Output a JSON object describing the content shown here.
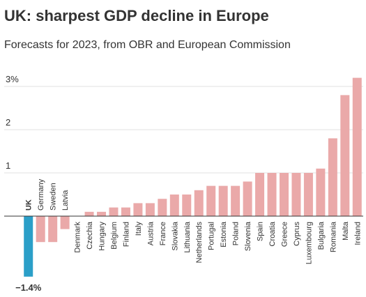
{
  "chart_data": {
    "type": "bar",
    "title": "UK: sharpest GDP decline in Europe",
    "subtitle": "Forecasts for 2023, from OBR and European Commission",
    "categories": [
      "UK",
      "Germany",
      "Sweden",
      "Latvia",
      "Denmark",
      "Czechia",
      "Hungary",
      "Belgium",
      "Finland",
      "Italy",
      "Austria",
      "France",
      "Slovakia",
      "Lithuania",
      "Netherlands",
      "Portugal",
      "Estonia",
      "Poland",
      "Slovenia",
      "Spain",
      "Croatia",
      "Greece",
      "Cyprus",
      "Luxembourg",
      "Bulgaria",
      "Romania",
      "Malta",
      "Ireland"
    ],
    "values": [
      -1.4,
      -0.6,
      -0.6,
      -0.3,
      0,
      0.1,
      0.1,
      0.2,
      0.2,
      0.3,
      0.3,
      0.4,
      0.5,
      0.5,
      0.6,
      0.7,
      0.7,
      0.7,
      0.8,
      1.0,
      1.0,
      1.0,
      1.0,
      1.0,
      1.1,
      1.8,
      2.8,
      3.2
    ],
    "value_labels": [
      "−1.4%",
      null,
      null,
      null,
      null,
      null,
      null,
      null,
      null,
      null,
      null,
      null,
      null,
      null,
      null,
      null,
      null,
      null,
      null,
      null,
      null,
      null,
      null,
      null,
      null,
      null,
      null,
      null
    ],
    "colors": [
      "#2b9fc8",
      "#eaa9a9",
      "#eaa9a9",
      "#eaa9a9",
      "#eaa9a9",
      "#eaa9a9",
      "#eaa9a9",
      "#eaa9a9",
      "#eaa9a9",
      "#eaa9a9",
      "#eaa9a9",
      "#eaa9a9",
      "#eaa9a9",
      "#eaa9a9",
      "#eaa9a9",
      "#eaa9a9",
      "#eaa9a9",
      "#eaa9a9",
      "#eaa9a9",
      "#eaa9a9",
      "#eaa9a9",
      "#eaa9a9",
      "#eaa9a9",
      "#eaa9a9",
      "#eaa9a9",
      "#eaa9a9",
      "#eaa9a9",
      "#eaa9a9"
    ],
    "ylim": [
      -1.5,
      3.3
    ],
    "yticks": [
      1,
      2,
      {
        "value": 3,
        "label": "3%"
      }
    ],
    "grid": true
  }
}
